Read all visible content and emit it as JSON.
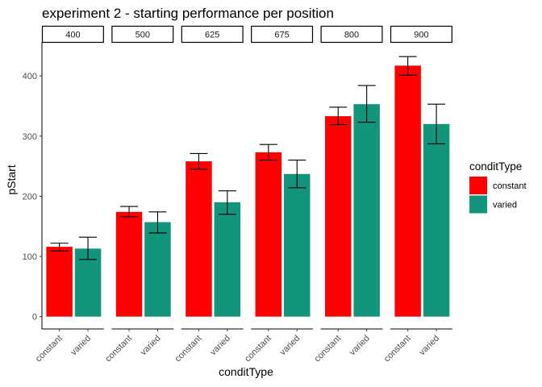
{
  "chart_data": {
    "type": "bar",
    "title": "experiment 2 - starting performance per position",
    "xlabel": "conditType",
    "ylabel": "pStart",
    "ylim": [
      0,
      455
    ],
    "yticks": [
      0,
      100,
      200,
      300,
      400
    ],
    "grid": false,
    "legend": {
      "title": "conditType",
      "placement": "right",
      "entries": [
        {
          "name": "constant",
          "color": "#ff0000"
        },
        {
          "name": "varied",
          "color": "#12957a"
        }
      ]
    },
    "categories": [
      "constant",
      "varied"
    ],
    "facets": [
      {
        "label": "400",
        "values": [
          116,
          113
        ],
        "error_low": [
          109,
          95
        ],
        "error_high": [
          122,
          132
        ]
      },
      {
        "label": "500",
        "values": [
          174,
          157
        ],
        "error_low": [
          166,
          139
        ],
        "error_high": [
          183,
          174
        ]
      },
      {
        "label": "625",
        "values": [
          258,
          190
        ],
        "error_low": [
          245,
          170
        ],
        "error_high": [
          271,
          209
        ]
      },
      {
        "label": "675",
        "values": [
          273,
          237
        ],
        "error_low": [
          260,
          214
        ],
        "error_high": [
          286,
          260
        ]
      },
      {
        "label": "800",
        "values": [
          333,
          353
        ],
        "error_low": [
          319,
          323
        ],
        "error_high": [
          348,
          384
        ]
      },
      {
        "label": "900",
        "values": [
          417,
          320
        ],
        "error_low": [
          401,
          287
        ],
        "error_high": [
          432,
          353
        ]
      }
    ]
  }
}
